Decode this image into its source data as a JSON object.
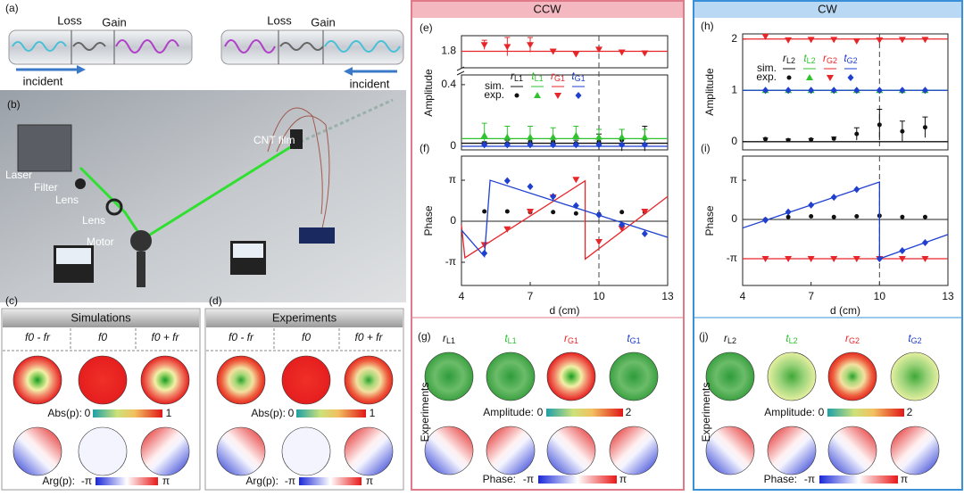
{
  "a": {
    "label": "(a)",
    "left": {
      "loss": "Loss",
      "gain": "Gain",
      "incident": "incident"
    },
    "right": {
      "loss": "Loss",
      "gain": "Gain",
      "incident": "incident"
    }
  },
  "b": {
    "label": "(b)",
    "parts": [
      "Laser",
      "Filter",
      "Lens",
      "Lens",
      "Motor",
      "CNT film"
    ]
  },
  "c": {
    "label": "(c)",
    "title": "Simulations",
    "columns": [
      "f0 - fr",
      "f0",
      "f0 + fr"
    ],
    "abs": {
      "name": "Abs(p):",
      "min": 0,
      "max": 1
    },
    "arg": {
      "name": "Arg(p):",
      "min": "-π",
      "max": "π"
    }
  },
  "d": {
    "label": "(d)",
    "title": "Experiments",
    "columns": [
      "f0 - fr",
      "f0",
      "f0 + fr"
    ],
    "abs": {
      "name": "Abs(p):",
      "min": 0,
      "max": 1
    },
    "arg": {
      "name": "Arg(p):",
      "min": "-π",
      "max": "π"
    }
  },
  "ccw": {
    "title": "CCW"
  },
  "cw": {
    "title": "CW"
  },
  "g": {
    "label": "(g)",
    "columns": [
      "rL1",
      "tL1",
      "rG1",
      "tG1"
    ],
    "side": "Experiments",
    "amplitude": {
      "name": "Amplitude:",
      "min": 0,
      "max": 2
    },
    "phase": {
      "name": "Phase:",
      "min": "-π",
      "max": "π"
    }
  },
  "j": {
    "label": "(j)",
    "columns": [
      "rL2",
      "tL2",
      "rG2",
      "tG2"
    ],
    "side": "Experiments",
    "amplitude": {
      "name": "Amplitude:",
      "min": 0,
      "max": 2
    },
    "phase": {
      "name": "Phase:",
      "min": "-π",
      "max": "π"
    }
  },
  "chart_data": [
    {
      "type": "scatter",
      "label": "(e)",
      "ylabel": "Amplitude",
      "xlim": [
        4,
        13
      ],
      "ref_x": 10,
      "segments": [
        {
          "ylim": [
            1.62,
            1.97
          ],
          "yticks": [
            1.8
          ]
        },
        {
          "ylim": [
            -0.023,
            0.463
          ],
          "yticks": [
            0,
            0.4
          ]
        }
      ],
      "legend_rows": [
        "sim.",
        "exp."
      ],
      "series": [
        {
          "name": "rL1",
          "color": "#111111",
          "marker": "circle",
          "segment": 1,
          "x": [
            5,
            6,
            7,
            8,
            9,
            10,
            11,
            12
          ],
          "values": [
            0.02,
            0.02,
            0.03,
            0.03,
            0.02,
            0.03,
            0.04,
            0.05
          ],
          "errors": [
            0.01,
            0.02,
            0.02,
            0.02,
            0.02,
            0.05,
            0.07,
            0.08
          ],
          "sim_x": [
            4,
            13
          ],
          "sim_values": [
            0.02,
            0.02
          ]
        },
        {
          "name": "tL1",
          "color": "#2ec32e",
          "marker": "triangle-up",
          "segment": 1,
          "x": [
            5,
            6,
            7,
            8,
            9,
            10,
            11,
            12
          ],
          "values": [
            0.07,
            0.06,
            0.06,
            0.06,
            0.07,
            0.06,
            0.06,
            0.06
          ],
          "errors": [
            0.08,
            0.07,
            0.07,
            0.06,
            0.06,
            0.05,
            0.05,
            0.05
          ],
          "sim_x": [
            4,
            13
          ],
          "sim_values": [
            0.05,
            0.05
          ]
        },
        {
          "name": "rG1",
          "color": "#e8262a",
          "marker": "triangle-down",
          "segment": 0,
          "x": [
            5,
            6,
            7,
            8,
            9,
            10,
            11,
            12
          ],
          "values": [
            1.87,
            1.85,
            1.87,
            1.8,
            1.77,
            1.82,
            1.79,
            1.78
          ],
          "errors": [
            0.05,
            0.1,
            0.08,
            0.02,
            0.03,
            0.02,
            0.02,
            0.02
          ],
          "sim_x": [
            4,
            13
          ],
          "sim_values": [
            1.8,
            1.8
          ]
        },
        {
          "name": "tG1",
          "color": "#1f3fcf",
          "marker": "diamond",
          "segment": 1,
          "x": [
            5,
            6,
            7,
            8,
            9,
            10,
            11,
            12
          ],
          "values": [
            0.01,
            0.01,
            0.01,
            0.01,
            0.01,
            0.01,
            0.01,
            0.01
          ],
          "sim_x": [
            4,
            13
          ],
          "sim_values": [
            0,
            0
          ]
        }
      ]
    },
    {
      "type": "scatter",
      "label": "(f)",
      "ylabel": "Phase",
      "xlabel": "d (cm)",
      "xlim": [
        4,
        13
      ],
      "xticks": [
        4,
        7,
        10,
        13
      ],
      "ref_x": 10,
      "ylim": [
        -4.92,
        4.99
      ],
      "yticks": [
        {
          "value": -3.14159,
          "label": "-π"
        },
        0,
        {
          "value": 3.14159,
          "label": "π"
        }
      ],
      "series": [
        {
          "name": "rL1",
          "color": "#111111",
          "marker": "circle",
          "x": [
            5,
            6,
            7,
            8,
            9,
            10,
            11,
            12
          ],
          "values": [
            0.75,
            0.75,
            0.7,
            0.7,
            0.6,
            0.55,
            0.7,
            0.7
          ]
        },
        {
          "name": "rG1",
          "color": "#e8262a",
          "marker": "triangle-down",
          "x": [
            5,
            6,
            7,
            8,
            9,
            10,
            11,
            12
          ],
          "values": [
            -1.8,
            -0.6,
            0.75,
            1.85,
            3.2,
            -1.57,
            -0.55,
            0.75
          ],
          "sim_x": [
            4,
            4.15,
            9.4,
            9.4,
            13
          ],
          "sim_values": [
            -0.3,
            -2.8,
            3.1,
            -2.9,
            1.9
          ]
        },
        {
          "name": "tG1",
          "color": "#1f3fcf",
          "marker": "diamond",
          "x": [
            5,
            6,
            7,
            8,
            9,
            10,
            11,
            12
          ],
          "values": [
            -2.45,
            3.1,
            2.66,
            1.9,
            1.2,
            0.48,
            -0.27,
            -0.96
          ],
          "sim_x": [
            4,
            5,
            5.25,
            13
          ],
          "sim_values": [
            -0.68,
            -2.7,
            3.14,
            -1.23
          ]
        }
      ]
    },
    {
      "type": "scatter",
      "label": "(h)",
      "ylabel": "Amplitude",
      "xlim": [
        4,
        13
      ],
      "ref_x": 10,
      "ylim": [
        -0.16,
        2.1
      ],
      "yticks": [
        0,
        1,
        2
      ],
      "legend_rows": [
        "sim.",
        "exp."
      ],
      "series": [
        {
          "name": "rL2",
          "color": "#111111",
          "marker": "circle",
          "x": [
            5,
            6,
            7,
            8,
            9,
            10,
            11,
            12
          ],
          "values": [
            0.05,
            0.03,
            0.04,
            0.06,
            0.15,
            0.33,
            0.2,
            0.28
          ],
          "errors": [
            0.02,
            0.02,
            0.02,
            0.03,
            0.12,
            0.3,
            0.2,
            0.2
          ],
          "sim_x": [
            4,
            13
          ],
          "sim_values": [
            0,
            0
          ]
        },
        {
          "name": "tL2",
          "color": "#2ec32e",
          "marker": "triangle-up",
          "x": [
            5,
            6,
            7,
            8,
            9,
            10,
            11,
            12
          ],
          "values": [
            1,
            1,
            1,
            1,
            1,
            1,
            1,
            1
          ],
          "sim_x": [
            4,
            13
          ],
          "sim_values": [
            1,
            1
          ]
        },
        {
          "name": "rG2",
          "color": "#e8262a",
          "marker": "triangle-down",
          "x": [
            5,
            6,
            7,
            8,
            9,
            10,
            11,
            12
          ],
          "values": [
            2.05,
            1.98,
            1.99,
            1.99,
            1.96,
            1.98,
            1.99,
            1.99
          ],
          "sim_x": [
            4,
            13
          ],
          "sim_values": [
            2,
            2
          ]
        },
        {
          "name": "tG2",
          "color": "#1f3fcf",
          "marker": "diamond",
          "x": [
            5,
            6,
            7,
            8,
            9,
            10,
            11,
            12
          ],
          "values": [
            1,
            1,
            1,
            1,
            1,
            1,
            1,
            1
          ],
          "sim_x": [
            4,
            13
          ],
          "sim_values": [
            1,
            1
          ]
        }
      ]
    },
    {
      "type": "scatter",
      "label": "(i)",
      "ylabel": "Phase",
      "xlabel": "d (cm)",
      "xlim": [
        4,
        13
      ],
      "xticks": [
        4,
        7,
        10,
        13
      ],
      "ref_x": 10,
      "ylim": [
        -5.28,
        5.07
      ],
      "yticks": [
        {
          "value": -3.14159,
          "label": "-π"
        },
        0,
        {
          "value": 3.14159,
          "label": "π"
        }
      ],
      "series": [
        {
          "name": "rL2",
          "color": "#111111",
          "marker": "circle",
          "x": [
            5,
            6,
            7,
            8,
            9,
            10,
            11,
            12
          ],
          "values": [
            0,
            0.2,
            0.25,
            0.2,
            0.25,
            0.3,
            0.2,
            0.2
          ]
        },
        {
          "name": "rG2",
          "color": "#e8262a",
          "marker": "triangle-down",
          "x": [
            5,
            6,
            7,
            8,
            9,
            10,
            11,
            12
          ],
          "values": [
            -3.14,
            -3.14,
            -3.14,
            -3.14,
            -3.14,
            -3.14,
            -3.14,
            -3.14
          ],
          "sim_x": [
            4,
            13
          ],
          "sim_values": [
            -3.14,
            -3.14
          ]
        },
        {
          "name": "tG2",
          "color": "#1f3fcf",
          "marker": "diamond",
          "x": [
            5,
            6,
            7,
            8,
            9,
            10,
            11,
            12
          ],
          "values": [
            -0.05,
            0.6,
            1.15,
            1.78,
            2.4,
            -3.14,
            -2.5,
            -1.85
          ],
          "sim_x": [
            4,
            10,
            10,
            13
          ],
          "sim_values": [
            -0.68,
            3.0,
            -3.14,
            -1.2
          ]
        }
      ]
    }
  ]
}
